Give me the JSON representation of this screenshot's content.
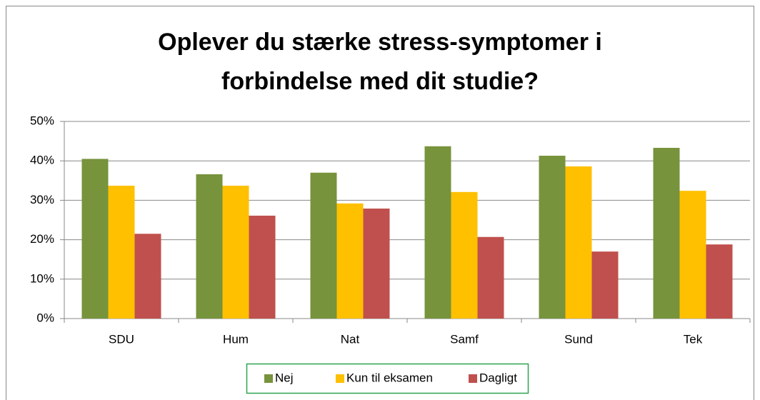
{
  "chart_data": {
    "type": "bar",
    "title": [
      "Oplever du stærke stress-symptomer i",
      "forbindelse med dit studie?"
    ],
    "categories": [
      "SDU",
      "Hum",
      "Nat",
      "Samf",
      "Sund",
      "Tek"
    ],
    "series": [
      {
        "name": "Nej",
        "color": "#77933c",
        "values": [
          40.5,
          36.6,
          37.0,
          43.7,
          41.3,
          43.3
        ]
      },
      {
        "name": "Kun til eksamen",
        "color": "#ffc000",
        "values": [
          33.7,
          33.7,
          29.2,
          32.1,
          38.6,
          32.4
        ]
      },
      {
        "name": "Dagligt",
        "color": "#c0504d",
        "values": [
          21.5,
          26.1,
          27.9,
          20.7,
          17.0,
          18.8
        ]
      }
    ],
    "ylim": [
      0,
      50
    ],
    "yticks": [
      {
        "value": 0,
        "label": "0%"
      },
      {
        "value": 10,
        "label": "10%"
      },
      {
        "value": 20,
        "label": "20%"
      },
      {
        "value": 30,
        "label": "30%"
      },
      {
        "value": 40,
        "label": "40%"
      },
      {
        "value": 50,
        "label": "50%"
      }
    ],
    "grid": true,
    "legend": "bottom"
  }
}
